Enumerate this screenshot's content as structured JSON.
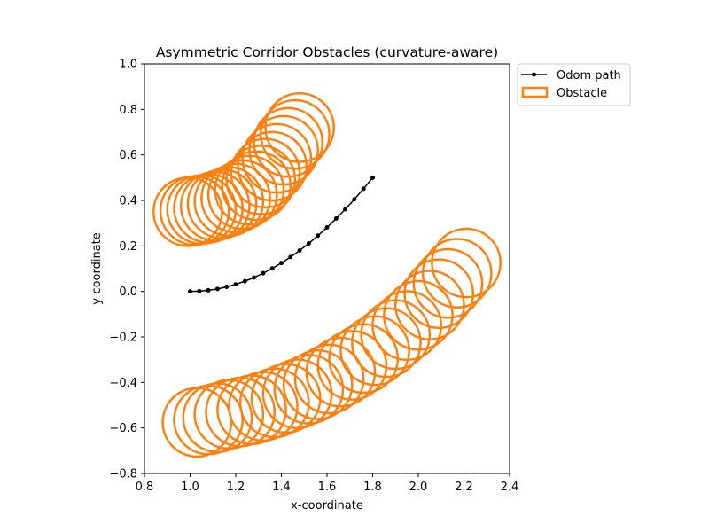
{
  "chart_data": {
    "type": "scatter",
    "title": "Asymmetric Corridor Obstacles (curvature-aware)",
    "xlabel": "x-coordinate",
    "ylabel": "y-coordinate",
    "xlim": [
      0.8,
      2.4
    ],
    "ylim": [
      -0.8,
      1.0
    ],
    "xticks": [
      0.8,
      1.0,
      1.2,
      1.4,
      1.6,
      1.8,
      2.0,
      2.2,
      2.4
    ],
    "yticks": [
      -0.8,
      -0.6,
      -0.4,
      -0.2,
      0.0,
      0.2,
      0.4,
      0.6,
      0.8,
      1.0
    ],
    "xtick_labels": [
      "0.8",
      "1.0",
      "1.2",
      "1.4",
      "1.6",
      "1.8",
      "2.0",
      "2.2",
      "2.4"
    ],
    "ytick_labels": [
      "−0.8",
      "−0.6",
      "−0.4",
      "−0.2",
      "0.0",
      "0.2",
      "0.4",
      "0.6",
      "0.8",
      "1.0"
    ],
    "grid": false,
    "legend_position": "outside-upper-right",
    "colors": {
      "path": "#000000",
      "obstacle": "#ff7f0e"
    },
    "series": [
      {
        "name": "Odom path",
        "kind": "line-markers",
        "x": [
          1.0,
          1.04,
          1.08,
          1.12,
          1.16,
          1.2,
          1.24,
          1.28,
          1.32,
          1.36,
          1.4,
          1.44,
          1.48,
          1.52,
          1.56,
          1.6,
          1.64,
          1.68,
          1.72,
          1.76,
          1.8
        ],
        "y": [
          0.0,
          0.001,
          0.005,
          0.011,
          0.02,
          0.031,
          0.045,
          0.061,
          0.08,
          0.101,
          0.125,
          0.151,
          0.18,
          0.211,
          0.245,
          0.281,
          0.32,
          0.361,
          0.405,
          0.451,
          0.5
        ]
      },
      {
        "name": "Obstacle",
        "kind": "circles",
        "radius": 0.15,
        "centers": [
          [
            0.99,
            0.35
          ],
          [
            1.02,
            0.355
          ],
          [
            1.05,
            0.36
          ],
          [
            1.08,
            0.365
          ],
          [
            1.11,
            0.375
          ],
          [
            1.14,
            0.385
          ],
          [
            1.17,
            0.395
          ],
          [
            1.2,
            0.41
          ],
          [
            1.23,
            0.425
          ],
          [
            1.26,
            0.445
          ],
          [
            1.29,
            0.465
          ],
          [
            1.31,
            0.49
          ],
          [
            1.33,
            0.52
          ],
          [
            1.36,
            0.55
          ],
          [
            1.38,
            0.585
          ],
          [
            1.41,
            0.62
          ],
          [
            1.43,
            0.655
          ],
          [
            1.46,
            0.69
          ],
          [
            1.48,
            0.72
          ],
          [
            1.03,
            -0.575
          ],
          [
            1.08,
            -0.565
          ],
          [
            1.12,
            -0.555
          ],
          [
            1.17,
            -0.54
          ],
          [
            1.22,
            -0.53
          ],
          [
            1.27,
            -0.52
          ],
          [
            1.32,
            -0.505
          ],
          [
            1.37,
            -0.49
          ],
          [
            1.42,
            -0.47
          ],
          [
            1.47,
            -0.45
          ],
          [
            1.52,
            -0.43
          ],
          [
            1.56,
            -0.41
          ],
          [
            1.61,
            -0.385
          ],
          [
            1.66,
            -0.355
          ],
          [
            1.71,
            -0.325
          ],
          [
            1.76,
            -0.295
          ],
          [
            1.81,
            -0.26
          ],
          [
            1.86,
            -0.225
          ],
          [
            1.9,
            -0.19
          ],
          [
            1.95,
            -0.15
          ],
          [
            2.0,
            -0.105
          ],
          [
            2.05,
            -0.06
          ],
          [
            2.09,
            -0.01
          ],
          [
            2.13,
            0.035
          ],
          [
            2.17,
            0.08
          ],
          [
            2.21,
            0.125
          ]
        ]
      }
    ]
  }
}
